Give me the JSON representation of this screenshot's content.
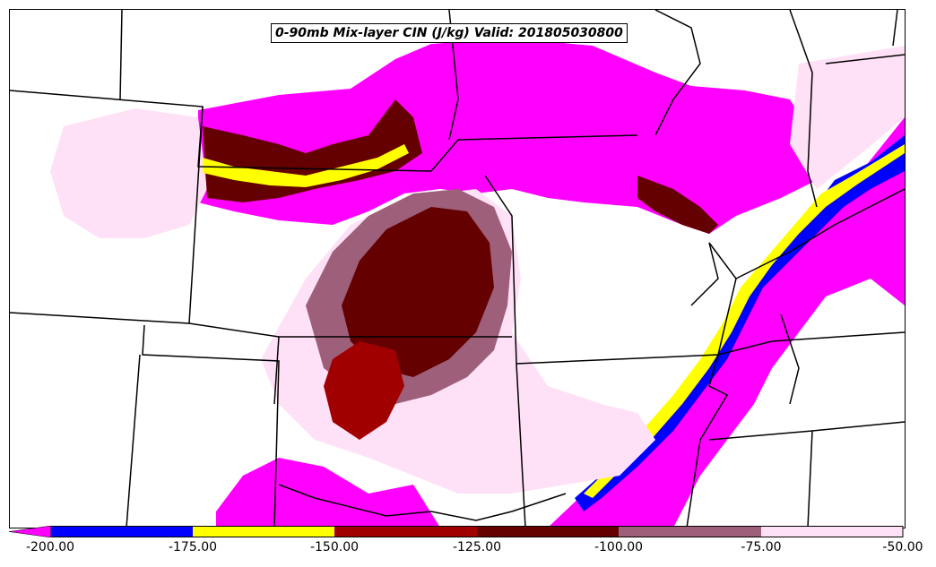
{
  "title": "0-90mb Mix-layer CIN (J/kg) Valid: 201805030800",
  "legend": {
    "colors": {
      "lt_-200": "#ff00ff",
      "-200_-175": "#0000ff",
      "-175_-150": "#ffff00",
      "-150_-125": "#a00000",
      "-125_-100": "#650000",
      "-100_-75": "#9e5f7a",
      "-75_-50": "#ffe1f7",
      "gt_-50": "#ffffff"
    },
    "ticks": [
      "-200.00",
      "-175.00",
      "-150.00",
      "-125.00",
      "-100.00",
      "-75.00",
      "-50.00"
    ]
  }
}
